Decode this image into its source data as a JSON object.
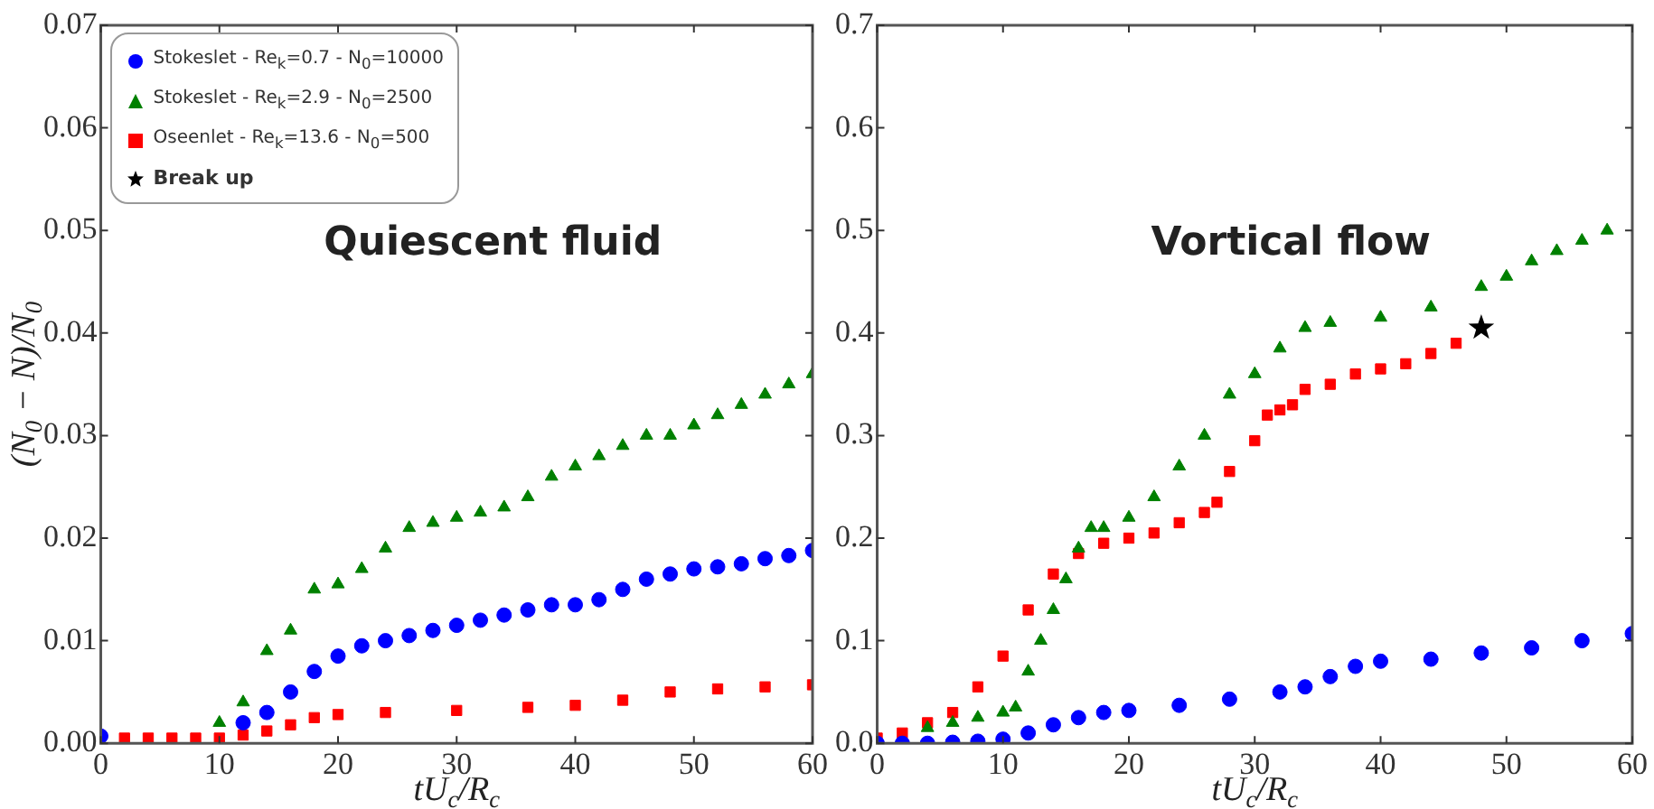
{
  "chart_data": [
    {
      "type": "scatter",
      "title": "Quiescent fluid",
      "xlabel": "tU$_{c}$/R$_{c}$",
      "ylabel": "(N$_{0}$ − N)/N$_{0}$",
      "xlim": [
        0,
        60
      ],
      "xticks": [
        0,
        10,
        20,
        30,
        40,
        50,
        60
      ],
      "ylim": [
        0,
        0.07
      ],
      "yticks": [
        {
          "value": 0,
          "label": "0.00"
        },
        {
          "value": 0.01,
          "label": "0.01"
        },
        {
          "value": 0.02,
          "label": "0.02"
        },
        {
          "value": 0.03,
          "label": "0.03"
        },
        {
          "value": 0.04,
          "label": "0.04"
        },
        {
          "value": 0.05,
          "label": "0.05"
        },
        {
          "value": 0.06,
          "label": "0.06"
        },
        {
          "value": 0.07,
          "label": "0.07"
        }
      ],
      "grid": false,
      "legend": "top left",
      "series": [
        {
          "name": "Stokeslet - Re$_{k}$=0.7 - N$_{0}$=10000",
          "color": "#0000ff",
          "marker": "circle",
          "x": [
            0,
            12,
            14,
            16,
            18,
            20,
            22,
            24,
            26,
            28,
            30,
            32,
            34,
            36,
            38,
            40,
            42,
            44,
            46,
            48,
            50,
            52,
            54,
            56,
            58,
            60
          ],
          "values": [
            0.0007,
            0.002,
            0.003,
            0.005,
            0.007,
            0.0085,
            0.0095,
            0.01,
            0.0105,
            0.011,
            0.0115,
            0.012,
            0.0125,
            0.013,
            0.0135,
            0.0135,
            0.014,
            0.015,
            0.016,
            0.0165,
            0.017,
            0.0172,
            0.0175,
            0.018,
            0.0183,
            0.0188
          ]
        },
        {
          "name": "Stokeslet - Re$_{k}$=2.9 - N$_{0}$=2500",
          "color": "#008000",
          "marker": "triangle",
          "x": [
            10,
            12,
            14,
            16,
            18,
            20,
            22,
            24,
            26,
            28,
            30,
            32,
            34,
            36,
            38,
            40,
            42,
            44,
            46,
            48,
            50,
            52,
            54,
            56,
            58,
            60
          ],
          "values": [
            0.002,
            0.004,
            0.009,
            0.011,
            0.015,
            0.0155,
            0.017,
            0.019,
            0.021,
            0.0215,
            0.022,
            0.0225,
            0.023,
            0.024,
            0.026,
            0.027,
            0.028,
            0.029,
            0.03,
            0.03,
            0.031,
            0.032,
            0.033,
            0.034,
            0.035,
            0.036
          ]
        },
        {
          "name": "Oseenlet - Re$_{k}$=13.6 - N$_{0}$=500",
          "color": "#ff0000",
          "marker": "square",
          "x": [
            2,
            4,
            6,
            8,
            10,
            12,
            14,
            16,
            18,
            20,
            24,
            30,
            36,
            40,
            44,
            48,
            52,
            56,
            60
          ],
          "values": [
            0.0005,
            0.0005,
            0.0005,
            0.0005,
            0.0005,
            0.0008,
            0.0012,
            0.0018,
            0.0025,
            0.0028,
            0.003,
            0.0032,
            0.0035,
            0.0037,
            0.0042,
            0.005,
            0.0053,
            0.0055,
            0.0057
          ]
        }
      ]
    },
    {
      "type": "scatter",
      "title": "Vortical flow",
      "xlabel": "tU$_{c}$/R$_{c}$",
      "xlim": [
        0,
        60
      ],
      "xticks": [
        0,
        10,
        20,
        30,
        40,
        50,
        60
      ],
      "ylim": [
        0,
        0.7
      ],
      "yticks": [
        {
          "value": 0,
          "label": "0.0"
        },
        0.1,
        0.2,
        0.3,
        0.4,
        0.5,
        0.6,
        0.7
      ],
      "grid": false,
      "series": [
        {
          "color": "#0000ff",
          "marker": "circle",
          "x": [
            0,
            2,
            4,
            6,
            8,
            10,
            12,
            14,
            16,
            18,
            20,
            24,
            28,
            32,
            34,
            36,
            38,
            40,
            44,
            48,
            52,
            56,
            60
          ],
          "values": [
            0,
            0,
            0,
            0.001,
            0.002,
            0.004,
            0.01,
            0.018,
            0.025,
            0.03,
            0.032,
            0.037,
            0.043,
            0.05,
            0.055,
            0.065,
            0.075,
            0.08,
            0.082,
            0.088,
            0.093,
            0.1,
            0.107
          ]
        },
        {
          "color": "#008000",
          "marker": "triangle",
          "x": [
            4,
            6,
            8,
            10,
            11,
            12,
            13,
            14,
            15,
            16,
            17,
            18,
            20,
            22,
            24,
            26,
            28,
            30,
            32,
            34,
            36,
            40,
            44,
            48,
            50,
            52,
            54,
            56,
            58
          ],
          "values": [
            0.015,
            0.02,
            0.025,
            0.03,
            0.035,
            0.07,
            0.1,
            0.13,
            0.16,
            0.19,
            0.21,
            0.21,
            0.22,
            0.24,
            0.27,
            0.3,
            0.34,
            0.36,
            0.385,
            0.405,
            0.41,
            0.415,
            0.425,
            0.445,
            0.455,
            0.47,
            0.48,
            0.49,
            0.5
          ]
        },
        {
          "color": "#ff0000",
          "marker": "square",
          "x": [
            0,
            2,
            4,
            6,
            8,
            10,
            12,
            14,
            16,
            18,
            20,
            22,
            24,
            26,
            27,
            28,
            30,
            31,
            32,
            33,
            34,
            36,
            38,
            40,
            42,
            44,
            46
          ],
          "values": [
            0.005,
            0.01,
            0.02,
            0.03,
            0.055,
            0.085,
            0.13,
            0.165,
            0.185,
            0.195,
            0.2,
            0.205,
            0.215,
            0.225,
            0.235,
            0.265,
            0.295,
            0.32,
            0.325,
            0.33,
            0.345,
            0.35,
            0.36,
            0.365,
            0.37,
            0.38,
            0.39
          ]
        },
        {
          "name": "Break up",
          "color": "#000000",
          "marker": "star",
          "x": [
            48
          ],
          "values": [
            0.405
          ]
        }
      ]
    }
  ]
}
